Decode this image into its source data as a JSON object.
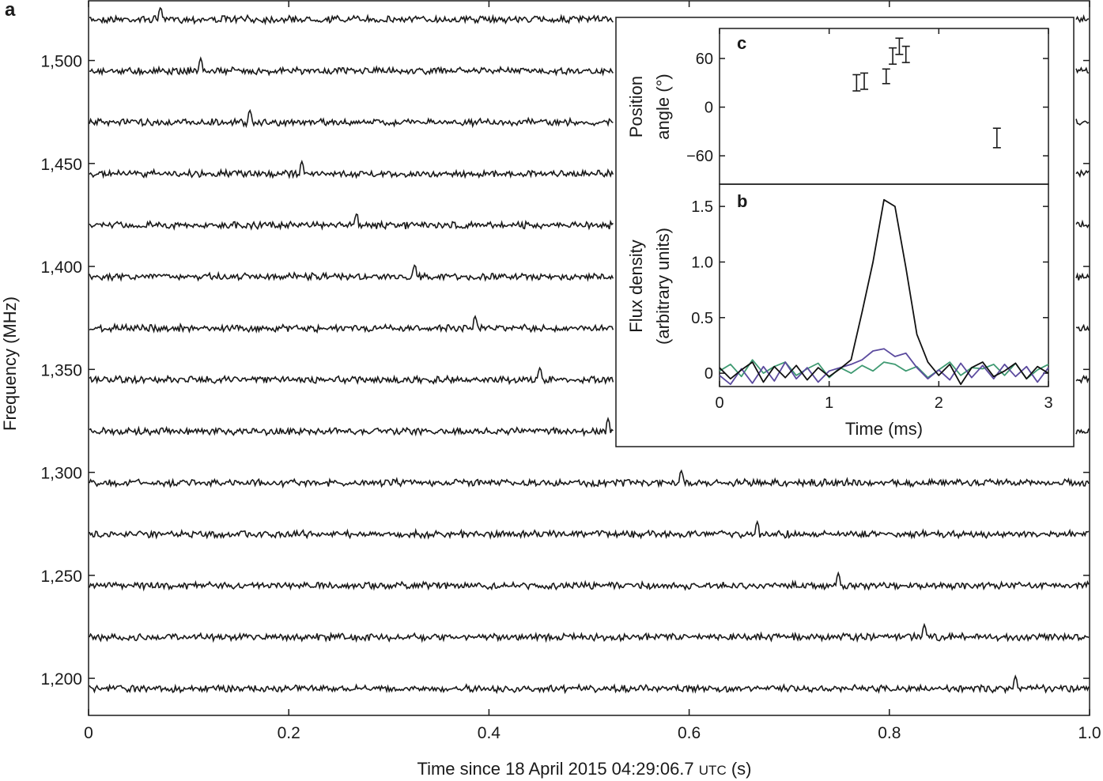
{
  "panel_labels": {
    "a": "a",
    "b": "b",
    "c": "c"
  },
  "colors": {
    "ink": "#1a1a1a",
    "series_total": "#111111",
    "series_purple": "#5b4a9e",
    "series_green": "#3f9a72"
  },
  "chart_data": [
    {
      "panel": "a",
      "type": "line",
      "xlabel": "Time since 18 April 2015 04:29:06.7",
      "xlabel_small": "UTC",
      "xlabel_suffix": "(s)",
      "ylabel": "Frequency (MHz)",
      "xlim": [
        0,
        1.0
      ],
      "ylim": [
        1182,
        1529
      ],
      "xticks": [
        0,
        0.2,
        0.4,
        0.6,
        0.8,
        1.0
      ],
      "xtick_labels": [
        "0",
        "0.2",
        "0.4",
        "0.6",
        "0.8",
        "1.0"
      ],
      "yticks": [
        1200,
        1250,
        1300,
        1350,
        1400,
        1450,
        1500
      ],
      "ytick_labels": [
        "1,200",
        "1,250",
        "1,300",
        "1,350",
        "1,400",
        "1,450",
        "1,500"
      ],
      "series": [
        {
          "channel": 1,
          "baseline": 1520,
          "pulse_time": 0.072
        },
        {
          "channel": 2,
          "baseline": 1495,
          "pulse_time": 0.112
        },
        {
          "channel": 3,
          "baseline": 1470,
          "pulse_time": 0.161
        },
        {
          "channel": 4,
          "baseline": 1445,
          "pulse_time": 0.213
        },
        {
          "channel": 5,
          "baseline": 1420,
          "pulse_time": 0.268
        },
        {
          "channel": 6,
          "baseline": 1395,
          "pulse_time": 0.326
        },
        {
          "channel": 7,
          "baseline": 1370,
          "pulse_time": 0.386
        },
        {
          "channel": 8,
          "baseline": 1345,
          "pulse_time": 0.451
        },
        {
          "channel": 9,
          "baseline": 1320,
          "pulse_time": 0.519
        },
        {
          "channel": 10,
          "baseline": 1295,
          "pulse_time": 0.592
        },
        {
          "channel": 11,
          "baseline": 1270,
          "pulse_time": 0.668
        },
        {
          "channel": 12,
          "baseline": 1245,
          "pulse_time": 0.749
        },
        {
          "channel": 13,
          "baseline": 1220,
          "pulse_time": 0.835
        },
        {
          "channel": 14,
          "baseline": 1195,
          "pulse_time": 0.926
        }
      ]
    },
    {
      "panel": "c",
      "type": "scatter",
      "ylabel_line1": "Position",
      "ylabel_line2": "angle (°)",
      "xlim": [
        0,
        3
      ],
      "ylim": [
        -95,
        97
      ],
      "yticks": [
        60,
        0,
        -60
      ],
      "ytick_labels": [
        "60",
        "0",
        "−60"
      ],
      "points": [
        {
          "x": 1.25,
          "y": 30,
          "err": 10
        },
        {
          "x": 1.32,
          "y": 32,
          "err": 10
        },
        {
          "x": 1.52,
          "y": 38,
          "err": 9
        },
        {
          "x": 1.58,
          "y": 63,
          "err": 10
        },
        {
          "x": 1.64,
          "y": 75,
          "err": 10
        },
        {
          "x": 1.7,
          "y": 65,
          "err": 10
        },
        {
          "x": 2.53,
          "y": -38,
          "err": 12
        }
      ]
    },
    {
      "panel": "b",
      "type": "line",
      "xlabel": "Time (ms)",
      "ylabel_line1": "Flux density",
      "ylabel_line2": "(arbitrary units)",
      "xlim": [
        0,
        3
      ],
      "ylim": [
        -0.12,
        1.7
      ],
      "xticks": [
        0,
        1,
        2,
        3
      ],
      "xtick_labels": [
        "0",
        "1",
        "2",
        "3"
      ],
      "yticks": [
        0,
        0.5,
        1.0,
        1.5
      ],
      "ytick_labels": [
        "0",
        "0.5",
        "1.0",
        "1.5"
      ],
      "series": [
        {
          "color_key": "series_total",
          "x": [
            0,
            0.1,
            0.2,
            0.3,
            0.4,
            0.5,
            0.6,
            0.7,
            0.8,
            0.9,
            1.0,
            1.1,
            1.2,
            1.3,
            1.4,
            1.5,
            1.6,
            1.7,
            1.8,
            1.9,
            2.0,
            2.1,
            2.2,
            2.3,
            2.4,
            2.5,
            2.6,
            2.7,
            2.8,
            2.9,
            3.0
          ],
          "y": [
            0.05,
            -0.05,
            0.03,
            0.1,
            -0.08,
            0.06,
            -0.04,
            0.07,
            -0.06,
            0.05,
            -0.03,
            0.04,
            0.12,
            0.55,
            1.0,
            1.56,
            1.5,
            0.95,
            0.35,
            0.1,
            -0.02,
            0.08,
            -0.1,
            0.05,
            0.1,
            -0.03,
            0.02,
            0.09,
            -0.05,
            0.06,
            0.0
          ]
        },
        {
          "color_key": "series_purple",
          "x": [
            0,
            0.1,
            0.2,
            0.3,
            0.4,
            0.5,
            0.6,
            0.7,
            0.8,
            0.9,
            1.0,
            1.1,
            1.2,
            1.3,
            1.4,
            1.5,
            1.6,
            1.7,
            1.8,
            1.9,
            2.0,
            2.1,
            2.2,
            2.3,
            2.4,
            2.5,
            2.6,
            2.7,
            2.8,
            2.9,
            3.0
          ],
          "y": [
            -0.02,
            -0.1,
            0.04,
            -0.09,
            0.06,
            -0.07,
            0.1,
            -0.05,
            0.05,
            -0.08,
            0.02,
            0.05,
            0.08,
            0.12,
            0.2,
            0.22,
            0.15,
            0.18,
            0.05,
            -0.05,
            0.03,
            -0.06,
            0.09,
            -0.04,
            0.07,
            -0.05,
            0.08,
            -0.03,
            0.06,
            -0.08,
            0.05
          ]
        },
        {
          "color_key": "series_green",
          "x": [
            0,
            0.1,
            0.2,
            0.3,
            0.4,
            0.5,
            0.6,
            0.7,
            0.8,
            0.9,
            1.0,
            1.1,
            1.2,
            1.3,
            1.4,
            1.5,
            1.6,
            1.7,
            1.8,
            1.9,
            2.0,
            2.1,
            2.2,
            2.3,
            2.4,
            2.5,
            2.6,
            2.7,
            2.8,
            2.9,
            3.0
          ],
          "y": [
            0.02,
            0.08,
            -0.03,
            0.12,
            0.0,
            0.06,
            0.1,
            -0.02,
            0.04,
            0.09,
            -0.04,
            0.05,
            0.0,
            0.07,
            0.02,
            0.1,
            0.08,
            0.02,
            0.06,
            -0.04,
            0.03,
            0.1,
            -0.02,
            0.05,
            0.04,
            0.08,
            -0.02,
            0.09,
            -0.05,
            0.03,
            0.08
          ]
        }
      ]
    }
  ]
}
